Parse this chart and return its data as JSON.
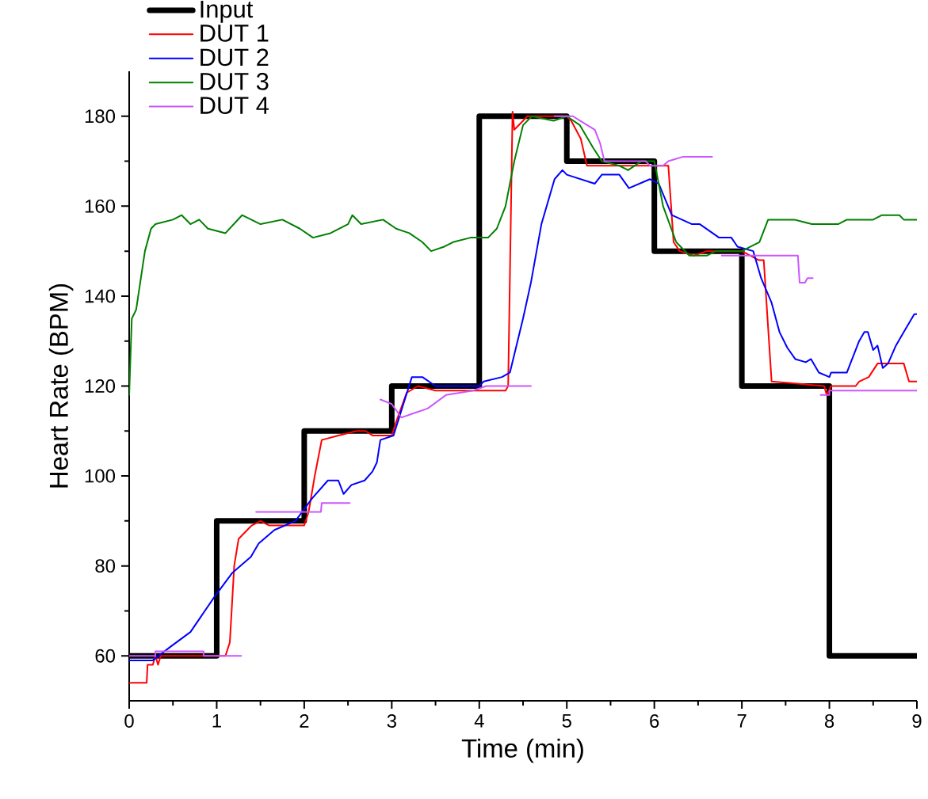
{
  "chart_data": {
    "type": "line",
    "xlabel": "Time (min)",
    "ylabel": "Heart Rate (BPM)",
    "xlim": [
      0,
      9
    ],
    "ylim": [
      50,
      190
    ],
    "xticks": [
      0,
      1,
      2,
      3,
      4,
      5,
      6,
      7,
      8,
      9
    ],
    "yticks": [
      60,
      80,
      100,
      120,
      140,
      160,
      180
    ],
    "legend": "top left",
    "series": [
      {
        "name": "Input",
        "type": "step",
        "color": "#000000",
        "x": [
          0,
          1,
          2,
          3,
          4,
          5,
          6,
          7,
          8,
          9
        ],
        "values": [
          60,
          90,
          110,
          120,
          180,
          170,
          150,
          120,
          60,
          60
        ]
      },
      {
        "name": "DUT 1",
        "color": "#ff0000",
        "x": [
          0,
          0.2,
          0.21,
          0.27,
          0.3,
          0.33,
          0.36,
          1.1,
          1.15,
          1.2,
          1.25,
          1.4,
          1.5,
          1.6,
          2.0,
          2.05,
          2.12,
          2.2,
          2.39,
          2.6,
          2.7,
          2.78,
          3.0,
          3.05,
          3.17,
          3.3,
          3.5,
          4.3,
          4.33,
          4.38,
          4.4,
          4.5,
          4.55,
          5.0,
          5.05,
          5.16,
          5.23,
          6.16,
          6.22,
          6.29,
          6.45,
          6.6,
          7.0,
          7.19,
          7.25,
          7.34,
          7.94,
          7.97,
          8.02,
          8.3,
          8.34,
          8.45,
          8.55,
          8.85,
          8.91,
          9
        ],
        "values": [
          54,
          54,
          58,
          58,
          60,
          58,
          60,
          60,
          63,
          80,
          86,
          89,
          90,
          89,
          89,
          92,
          100,
          108,
          109,
          110,
          110,
          109,
          109,
          112,
          118.5,
          120,
          119,
          119,
          120,
          181,
          177,
          179,
          180,
          180,
          179,
          175,
          169,
          169,
          152,
          150,
          149,
          150,
          150,
          148,
          148,
          121,
          120,
          118,
          120,
          120,
          121,
          122,
          125,
          125,
          121,
          121
        ]
      },
      {
        "name": "DUT 2",
        "color": "#0000ff",
        "x": [
          0,
          0.27,
          0.47,
          0.7,
          0.97,
          1.18,
          1.39,
          1.48,
          1.66,
          1.9,
          2.09,
          2.27,
          2.39,
          2.45,
          2.54,
          2.69,
          2.78,
          2.83,
          2.87,
          3.02,
          3.23,
          3.35,
          3.5,
          4.0,
          4.05,
          4.26,
          4.35,
          4.5,
          4.59,
          4.71,
          4.86,
          4.95,
          5.0,
          5.32,
          5.4,
          5.6,
          5.71,
          5.95,
          6.05,
          6.2,
          6.43,
          6.52,
          6.74,
          6.88,
          6.95,
          7.13,
          7.22,
          7.34,
          7.43,
          7.52,
          7.61,
          7.73,
          7.79,
          7.88,
          8.0,
          8.02,
          8.2,
          8.34,
          8.4,
          8.44,
          8.5,
          8.55,
          8.61,
          8.67,
          8.76,
          8.85,
          8.97,
          9
        ],
        "values": [
          59,
          59,
          62,
          65.3,
          73,
          78.5,
          82,
          85,
          88,
          90,
          95,
          99,
          99,
          96,
          98,
          99,
          101,
          103,
          108,
          109,
          122,
          122,
          120,
          120,
          121,
          122,
          123,
          135,
          143,
          156,
          166,
          168,
          167,
          165,
          167,
          167,
          164,
          166,
          165,
          158,
          156,
          156,
          153,
          153,
          151,
          150,
          144,
          138.5,
          132,
          128.5,
          126,
          125.3,
          126,
          123,
          122,
          123,
          123,
          130,
          132,
          132,
          128,
          129,
          124,
          125,
          129,
          132,
          136,
          136
        ]
      },
      {
        "name": "DUT 3",
        "color": "#008000",
        "x": [
          0,
          0.03,
          0.08,
          0.18,
          0.25,
          0.3,
          0.5,
          0.6,
          0.7,
          0.8,
          0.9,
          1.1,
          1.29,
          1.5,
          1.75,
          1.95,
          2.1,
          2.3,
          2.5,
          2.55,
          2.65,
          2.9,
          3.05,
          3.2,
          3.35,
          3.45,
          3.6,
          3.7,
          3.9,
          4.1,
          4.2,
          4.3,
          4.4,
          4.5,
          4.6,
          4.85,
          5.0,
          5.15,
          5.3,
          5.4,
          5.6,
          5.7,
          5.85,
          6.0,
          6.1,
          6.25,
          6.4,
          6.6,
          6.7,
          7.0,
          7.1,
          7.2,
          7.3,
          7.6,
          7.8,
          8.1,
          8.2,
          8.5,
          8.6,
          8.8,
          8.85,
          9
        ],
        "values": [
          118,
          135,
          137,
          150,
          155,
          156,
          157,
          158,
          156,
          157,
          155,
          154,
          158,
          156,
          157,
          155,
          153,
          154,
          156,
          158,
          156,
          157,
          155,
          154,
          152,
          150,
          151,
          152,
          153,
          153,
          155,
          160,
          170,
          178,
          180,
          179,
          180,
          178,
          173,
          170,
          169,
          168,
          170,
          170,
          160,
          152,
          149,
          149,
          150,
          150,
          151,
          152,
          157,
          157,
          156,
          156,
          157,
          157,
          158,
          158,
          157,
          157
        ]
      },
      {
        "name": "DUT 4",
        "color": "#cc55ff",
        "x": [
          0,
          0.3,
          0.3,
          0.85,
          0.85,
          1.28,
          1.35,
          1.45,
          2.19,
          2.2,
          2.52,
          2.7,
          2.87,
          3.0,
          3.11,
          3.26,
          3.41,
          3.62,
          3.93,
          4.08,
          4.59,
          4.75,
          4.86,
          5.07,
          5.15,
          5.32,
          5.38,
          5.43,
          5.9,
          5.95,
          6.1,
          6.16,
          6.33,
          6.66,
          6.72,
          6.77,
          7.64,
          7.66,
          7.72,
          7.75,
          7.81,
          7.85,
          7.9,
          8.0,
          8.0,
          9
        ],
        "values": [
          60,
          60,
          61,
          61,
          60,
          60,
          null,
          92,
          92,
          94,
          94,
          null,
          117,
          116,
          113,
          114,
          115,
          118,
          119,
          120,
          120,
          null,
          180,
          180,
          179,
          177,
          174,
          170,
          170,
          169,
          169,
          170,
          171,
          171,
          null,
          149,
          149,
          143,
          143,
          144,
          144,
          null,
          118,
          118,
          119,
          119
        ]
      }
    ]
  }
}
